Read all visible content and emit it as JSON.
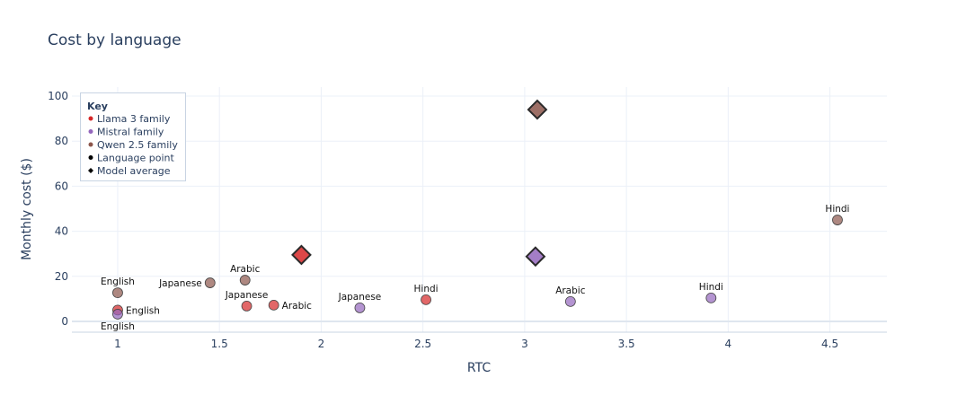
{
  "chart_data": {
    "type": "scatter",
    "title": "Cost by language",
    "xlabel": "RTC",
    "ylabel": "Monthly cost ($)",
    "xlim": [
      0.775,
      4.78
    ],
    "ylim": [
      -4.8,
      104
    ],
    "xticks": [
      1,
      1.5,
      2,
      2.5,
      3,
      3.5,
      4,
      4.5
    ],
    "xtick_labels": [
      "1",
      "1.5",
      "2",
      "2.5",
      "3",
      "3.5",
      "4",
      "4.5"
    ],
    "yticks": [
      0,
      20,
      40,
      60,
      80,
      100
    ],
    "ytick_labels": [
      "0",
      "20",
      "40",
      "60",
      "80",
      "100"
    ],
    "grid": true,
    "legend": {
      "title": "Key",
      "placement": "top-left",
      "entries": [
        {
          "label": "Llama 3 family",
          "symbol": "circle",
          "color": "#d62728"
        },
        {
          "label": "Mistral family",
          "symbol": "circle",
          "color": "#9467bd"
        },
        {
          "label": "Qwen 2.5 family",
          "symbol": "circle",
          "color": "#8c564b"
        },
        {
          "label": "Language point",
          "symbol": "circle",
          "color": "#000000"
        },
        {
          "label": "Model average",
          "symbol": "diamond",
          "color": "#000000"
        }
      ]
    },
    "series": [
      {
        "name": "Llama 3 family",
        "color": "#d62728",
        "points": [
          {
            "label": "English",
            "x": 1.0,
            "y": 5.0
          },
          {
            "label": "Japanese",
            "x": 1.634,
            "y": 6.8
          },
          {
            "label": "Arabic",
            "x": 1.767,
            "y": 7.2
          },
          {
            "label": "Hindi",
            "x": 2.515,
            "y": 9.6
          }
        ],
        "average": {
          "x": 1.903,
          "y": 29.5
        }
      },
      {
        "name": "Mistral family",
        "color": "#9467bd",
        "points": [
          {
            "label": "English",
            "x": 1.0,
            "y": 3.2
          },
          {
            "label": "Japanese",
            "x": 2.19,
            "y": 6.0
          },
          {
            "label": "Arabic",
            "x": 3.225,
            "y": 8.8
          },
          {
            "label": "Hindi",
            "x": 3.916,
            "y": 10.4
          }
        ],
        "average": {
          "x": 3.053,
          "y": 28.8
        }
      },
      {
        "name": "Qwen 2.5 family",
        "color": "#8c564b",
        "points": [
          {
            "label": "English",
            "x": 1.0,
            "y": 12.7
          },
          {
            "label": "Japanese",
            "x": 1.454,
            "y": 17.1
          },
          {
            "label": "Arabic",
            "x": 1.626,
            "y": 18.3
          },
          {
            "label": "Hindi",
            "x": 4.537,
            "y": 45.0
          }
        ],
        "average": {
          "x": 3.062,
          "y": 94.0
        }
      }
    ]
  }
}
